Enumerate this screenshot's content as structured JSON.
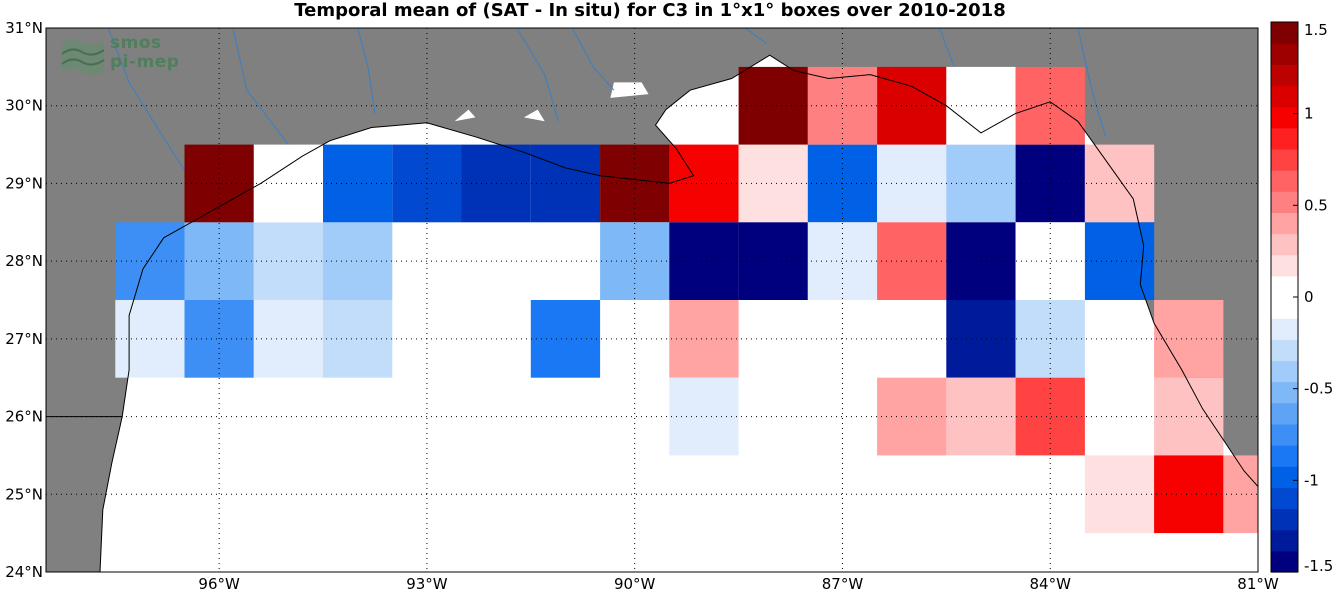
{
  "title": "Temporal mean of (SAT - In situ) for C3 in 1°x1° boxes over 2010-2018",
  "logo": {
    "line1": "smos",
    "line2": "pi-mep",
    "color": "#4f7f5c"
  },
  "map": {
    "lon_range": [
      -98.5,
      -81
    ],
    "lat_range": [
      24,
      31
    ],
    "land_color": "#808080",
    "water_color": "#ffffff",
    "river_color": "#3a7fc1",
    "grid": "dotted",
    "lon_ticks": [
      {
        "value": -96,
        "label": "96°W"
      },
      {
        "value": -93,
        "label": "93°W"
      },
      {
        "value": -90,
        "label": "90°W"
      },
      {
        "value": -87,
        "label": "87°W"
      },
      {
        "value": -84,
        "label": "84°W"
      },
      {
        "value": -81,
        "label": "81°W"
      }
    ],
    "lat_ticks": [
      {
        "value": 24,
        "label": "24°N"
      },
      {
        "value": 25,
        "label": "25°N"
      },
      {
        "value": 26,
        "label": "26°N"
      },
      {
        "value": 27,
        "label": "27°N"
      },
      {
        "value": 28,
        "label": "28°N"
      },
      {
        "value": 29,
        "label": "29°N"
      },
      {
        "value": 30,
        "label": "30°N"
      },
      {
        "value": 31,
        "label": "31°N"
      }
    ]
  },
  "chart_data": {
    "type": "heatmap",
    "title": "Temporal mean of (SAT - In situ) for C3 in 1°x1° boxes over 2010-2018",
    "cell_size_deg": 1,
    "cells": [
      {
        "lon": -97,
        "lat": 28,
        "value": -0.8
      },
      {
        "lon": -96,
        "lat": 28,
        "value": -0.55
      },
      {
        "lon": -95,
        "lat": 28,
        "value": -0.3
      },
      {
        "lon": -94,
        "lat": 28,
        "value": -0.4
      },
      {
        "lon": -97,
        "lat": 27,
        "value": -0.15
      },
      {
        "lon": -96,
        "lat": 27,
        "value": -0.7
      },
      {
        "lon": -95,
        "lat": 27,
        "value": -0.15
      },
      {
        "lon": -94,
        "lat": 27,
        "value": -0.3
      },
      {
        "lon": -96,
        "lat": 29,
        "value": 1.5
      },
      {
        "lon": -95,
        "lat": 29,
        "value": 0
      },
      {
        "lon": -94,
        "lat": 29,
        "value": -1.0
      },
      {
        "lon": -93,
        "lat": 29,
        "value": -1.05
      },
      {
        "lon": -92,
        "lat": 29,
        "value": -1.2
      },
      {
        "lon": -91,
        "lat": 29,
        "value": -1.2
      },
      {
        "lon": -90,
        "lat": 29,
        "value": 1.5
      },
      {
        "lon": -89,
        "lat": 29,
        "value": 1.0
      },
      {
        "lon": -88,
        "lat": 29,
        "value": 0.15
      },
      {
        "lon": -87,
        "lat": 29,
        "value": -1.0
      },
      {
        "lon": -86,
        "lat": 29,
        "value": -0.15
      },
      {
        "lon": -85,
        "lat": 29,
        "value": -0.4
      },
      {
        "lon": -84,
        "lat": 29,
        "value": -1.5
      },
      {
        "lon": -83,
        "lat": 29,
        "value": 0.3
      },
      {
        "lon": -88,
        "lat": 30,
        "value": 1.5
      },
      {
        "lon": -87,
        "lat": 30,
        "value": 0.5
      },
      {
        "lon": -86,
        "lat": 30,
        "value": 1.05
      },
      {
        "lon": -85,
        "lat": 30,
        "value": 0
      },
      {
        "lon": -84,
        "lat": 30,
        "value": 0.65
      },
      {
        "lon": -90,
        "lat": 28,
        "value": -0.5
      },
      {
        "lon": -89,
        "lat": 28,
        "value": -1.5
      },
      {
        "lon": -88,
        "lat": 28,
        "value": -1.5
      },
      {
        "lon": -87,
        "lat": 28,
        "value": -0.15
      },
      {
        "lon": -86,
        "lat": 28,
        "value": 0.65
      },
      {
        "lon": -85,
        "lat": 28,
        "value": -1.5
      },
      {
        "lon": -84,
        "lat": 28,
        "value": 0
      },
      {
        "lon": -83,
        "lat": 28,
        "value": -0.95
      },
      {
        "lon": -91,
        "lat": 27,
        "value": -0.85
      },
      {
        "lon": -89,
        "lat": 27,
        "value": 0.35
      },
      {
        "lon": -85,
        "lat": 27,
        "value": -1.3
      },
      {
        "lon": -84,
        "lat": 27,
        "value": -0.25
      },
      {
        "lon": -89,
        "lat": 26,
        "value": -0.15
      },
      {
        "lon": -86,
        "lat": 26,
        "value": 0.45
      },
      {
        "lon": -85,
        "lat": 26,
        "value": 0.3
      },
      {
        "lon": -84,
        "lat": 26,
        "value": 0.75
      },
      {
        "lon": -82,
        "lat": 26,
        "value": 0.3
      },
      {
        "lon": -83,
        "lat": 25,
        "value": 0.15
      },
      {
        "lon": -82,
        "lat": 25,
        "value": 0.95
      },
      {
        "lon": -81,
        "lat": 25,
        "value": 0.4
      },
      {
        "lon": -82,
        "lat": 27,
        "value": 0.45
      }
    ],
    "colorbar": {
      "range": [
        -1.5,
        1.5
      ],
      "ticks": [
        {
          "value": 1.5,
          "label": "1.5"
        },
        {
          "value": 1,
          "label": "1"
        },
        {
          "value": 0.5,
          "label": "0.5"
        },
        {
          "value": 0,
          "label": "0"
        },
        {
          "value": -0.5,
          "label": "-0.5"
        },
        {
          "value": -1,
          "label": "-1"
        },
        {
          "value": -1.5,
          "label": "-1.5"
        }
      ],
      "colors": [
        "#00007f",
        "#001a9c",
        "#0032b8",
        "#0049d0",
        "#0060e6",
        "#1a78f5",
        "#3d8ef5",
        "#5ea3f6",
        "#7eb8f7",
        "#a1cbf8",
        "#c2ddfa",
        "#e1edfc",
        "#ffffff",
        "#ffffff",
        "#ffe0e0",
        "#ffc2c2",
        "#ffa3a3",
        "#ff8080",
        "#ff6363",
        "#ff4242",
        "#ff2121",
        "#f70000",
        "#db0000",
        "#bd0000",
        "#9e0000",
        "#7f0000"
      ]
    }
  }
}
